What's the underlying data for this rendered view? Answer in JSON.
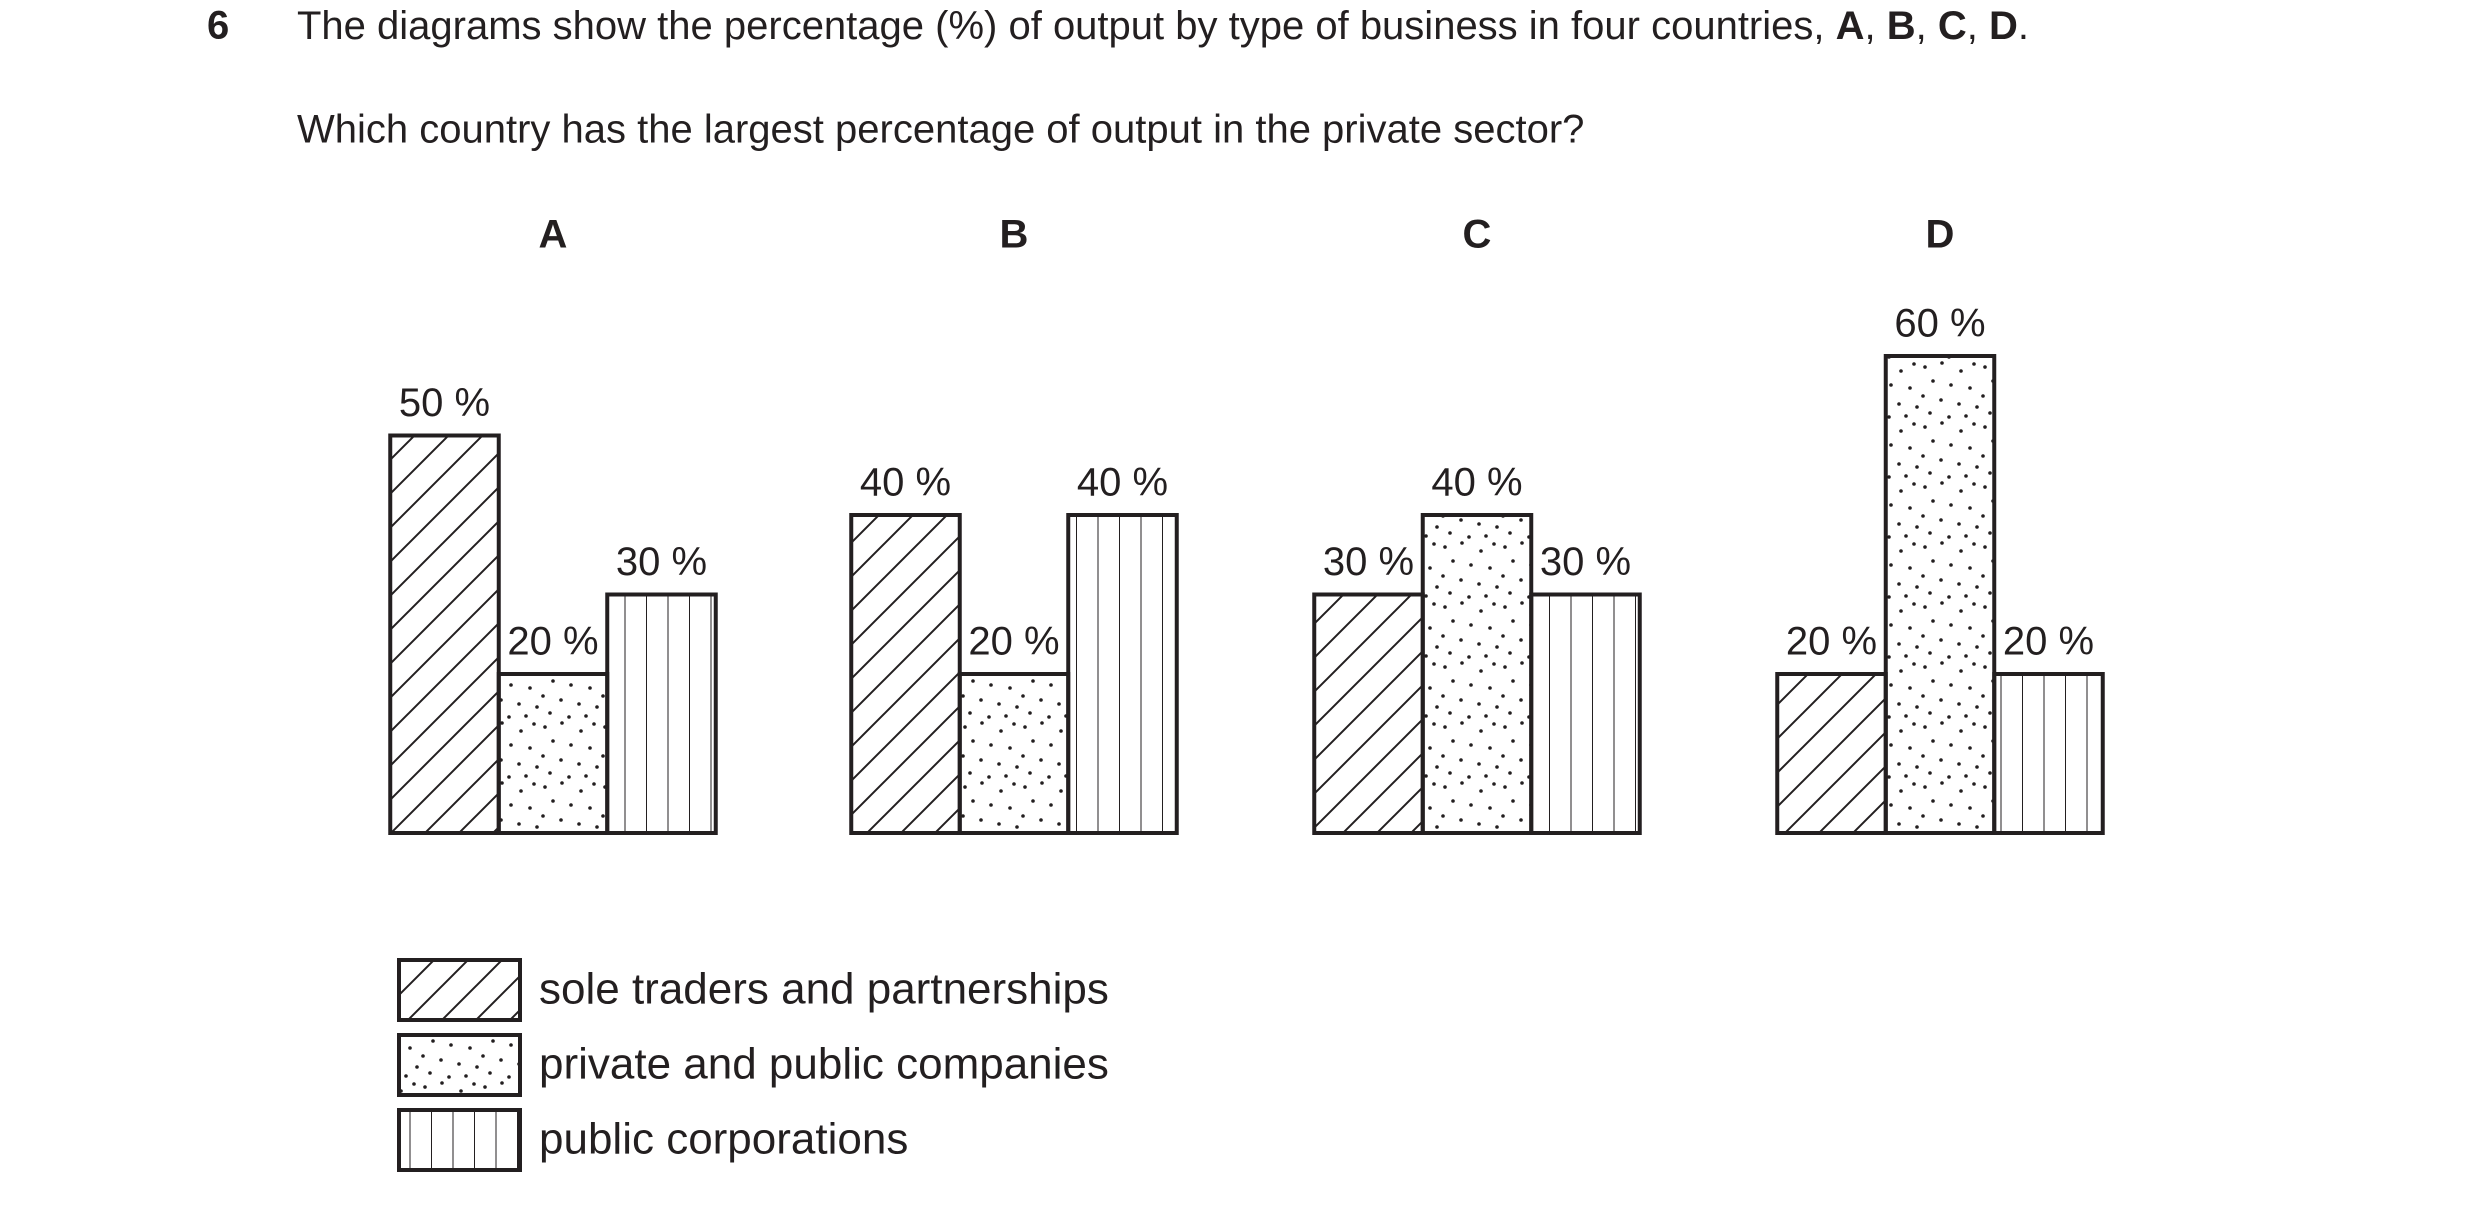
{
  "question": {
    "number": "6",
    "intro": [
      {
        "text": "The diagrams show the percentage (%) of output by type of business in four countries, ",
        "bold": false
      },
      {
        "text": "A",
        "bold": true
      },
      {
        "text": ", ",
        "bold": false
      },
      {
        "text": "B",
        "bold": true
      },
      {
        "text": ", ",
        "bold": false
      },
      {
        "text": "C",
        "bold": true
      },
      {
        "text": ", ",
        "bold": false
      },
      {
        "text": "D",
        "bold": true
      },
      {
        "text": ".",
        "bold": false
      }
    ],
    "prompt": "Which country has the largest percentage of output in the private sector?"
  },
  "legend": [
    {
      "name": "sole traders and partnerships",
      "pattern": "hatch"
    },
    {
      "name": "private and public companies",
      "pattern": "dots"
    },
    {
      "name": "public corporations",
      "pattern": "vertical"
    }
  ],
  "chart_data": [
    {
      "type": "bar",
      "title": "A",
      "values": [
        50,
        20,
        30
      ],
      "value_labels": [
        "50 %",
        "20 %",
        "30 %"
      ]
    },
    {
      "type": "bar",
      "title": "B",
      "values": [
        40,
        20,
        40
      ],
      "value_labels": [
        "40 %",
        "20 %",
        "40 %"
      ]
    },
    {
      "type": "bar",
      "title": "C",
      "values": [
        30,
        40,
        30
      ],
      "value_labels": [
        "30 %",
        "40 %",
        "30 %"
      ]
    },
    {
      "type": "bar",
      "title": "D",
      "values": [
        20,
        60,
        20
      ],
      "value_labels": [
        "20 %",
        "60 %",
        "20 %"
      ]
    }
  ]
}
